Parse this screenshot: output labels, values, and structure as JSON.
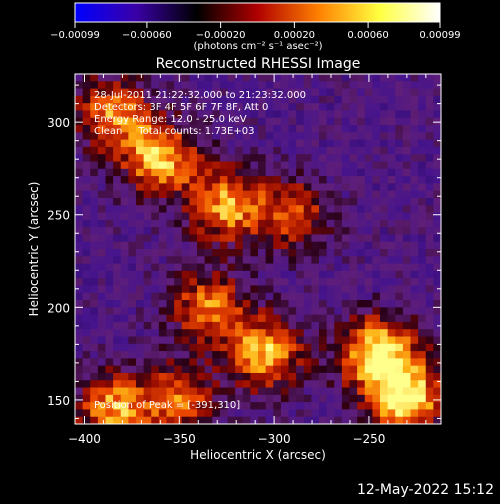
{
  "chart_data": {
    "type": "heatmap",
    "title": "Reconstructed RHESSI Image",
    "xlabel": "Heliocentric X (arcsec)",
    "ylabel": "Heliocentric Y (arcsec)",
    "xlim": [
      -405,
      -212
    ],
    "ylim": [
      137,
      326
    ],
    "x_ticks": [
      -400,
      -350,
      -300,
      -250
    ],
    "x_tick_labels": [
      "−400",
      "−350",
      "−300",
      "−250"
    ],
    "y_ticks": [
      150,
      200,
      250,
      300
    ],
    "y_tick_labels": [
      "150",
      "200",
      "250",
      "300"
    ],
    "colorbar": {
      "range": [
        -0.00099,
        0.00099
      ],
      "ticks": [
        -0.00099,
        -0.0006,
        -0.0002,
        0.0002,
        0.0006,
        0.00099
      ],
      "tick_labels": [
        "−0.00099",
        "−0.00060",
        "−0.00020",
        "0.00020",
        "0.00060",
        "0.00099"
      ],
      "unit_label": "(photons cm⁻² s⁻¹ asec⁻²)",
      "colors": [
        "#0000ff",
        "#3a00a8",
        "#000000",
        "#b00000",
        "#ff8000",
        "#ffff40",
        "#ffffff"
      ]
    },
    "annotations": {
      "time_range": "28-Jul-2011 21:22:32.000 to 21:23:32.000",
      "detectors": "Detectors: 3F 4F 5F 6F 7F 8F, Att 0",
      "energy": "Energy Range: 12.0 - 25.0 keV",
      "method_counts": "Clean     Total counts: 1.73E+03",
      "peak": "Position of Peak = [-391,310]"
    },
    "bright_regions": [
      {
        "x": -385,
        "y": 305,
        "level": 0.7
      },
      {
        "x": -360,
        "y": 280,
        "level": 0.8
      },
      {
        "x": -325,
        "y": 255,
        "level": 0.75
      },
      {
        "x": -290,
        "y": 250,
        "level": 0.55
      },
      {
        "x": -335,
        "y": 200,
        "level": 0.65
      },
      {
        "x": -305,
        "y": 175,
        "level": 0.8
      },
      {
        "x": -245,
        "y": 175,
        "level": 0.95
      },
      {
        "x": -230,
        "y": 150,
        "level": 0.9
      },
      {
        "x": -385,
        "y": 145,
        "level": 0.75
      },
      {
        "x": -350,
        "y": 150,
        "level": 0.6
      }
    ]
  },
  "footer": {
    "date": "12-May-2022 15:12"
  }
}
